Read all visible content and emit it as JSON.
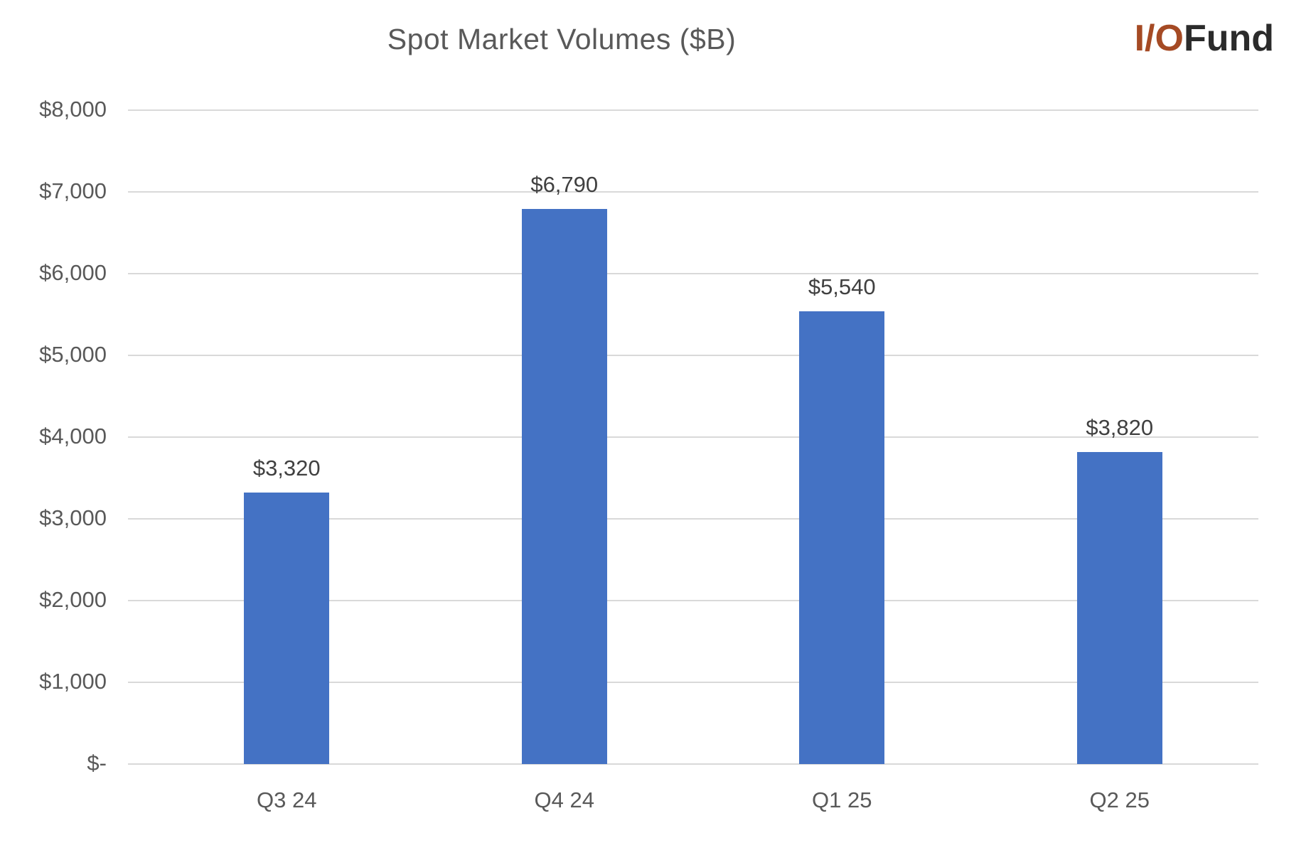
{
  "header": {
    "title": "Spot Market Volumes ($B)",
    "logo": {
      "prefix": "I/O",
      "suffix": "Fund"
    }
  },
  "colors": {
    "bar": "#4472C4",
    "grid": "#D9D9D9",
    "title_text": "#595959",
    "axis_text": "#595959",
    "data_label_text": "#404040",
    "logo_prefix": "#A54A24",
    "logo_suffix": "#2B2B2B",
    "background": "#FFFFFF"
  },
  "chart_data": {
    "type": "bar",
    "title": "Spot Market Volumes ($B)",
    "xlabel": "",
    "ylabel": "",
    "categories": [
      "Q3 24",
      "Q4 24",
      "Q1 25",
      "Q2 25"
    ],
    "values": [
      3320,
      6790,
      5540,
      3820
    ],
    "data_labels": [
      "$3,320",
      "$6,790",
      "$5,540",
      "$3,820"
    ],
    "ylim": [
      0,
      8000
    ],
    "ytick_step": 1000,
    "ytick_labels": [
      "$-",
      "$1,000",
      "$2,000",
      "$3,000",
      "$4,000",
      "$5,000",
      "$6,000",
      "$7,000",
      "$8,000"
    ],
    "grid": true,
    "legend": false,
    "bar_color": "#4472C4"
  }
}
